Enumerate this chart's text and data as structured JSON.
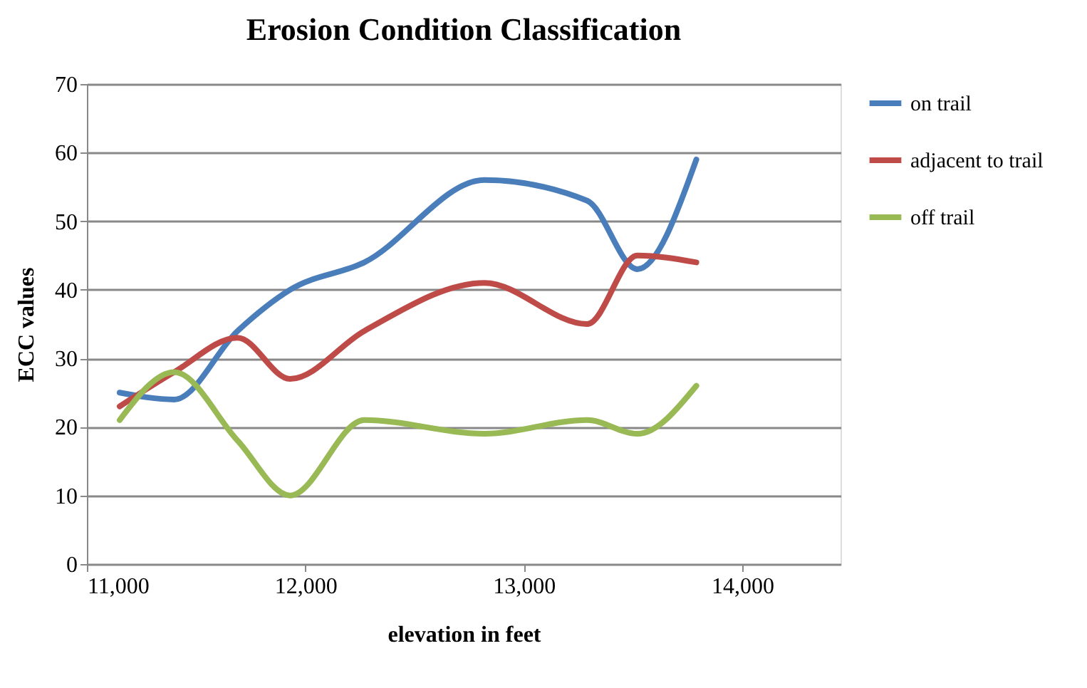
{
  "chart_data": {
    "type": "line",
    "title": "Erosion Condition Classification",
    "xlabel": "elevation in feet",
    "ylabel": "ECC values",
    "x": [
      11150,
      11400,
      11690,
      11930,
      12270,
      12820,
      13290,
      13520,
      13790
    ],
    "series": [
      {
        "name": "on trail",
        "color": "#4a7ebb",
        "values": [
          25,
          24,
          34,
          40,
          44,
          56,
          53,
          43,
          59
        ]
      },
      {
        "name": "adjacent to trail",
        "color": "#be4b48",
        "values": [
          23,
          28,
          33,
          27,
          34,
          41,
          35,
          45,
          44
        ]
      },
      {
        "name": "off trail",
        "color": "#98b954",
        "values": [
          21,
          28,
          18,
          10,
          21,
          19,
          21,
          19,
          26
        ]
      }
    ],
    "xlim": [
      11000,
      14450
    ],
    "xticks": [
      {
        "value": 11000,
        "label": "11,000"
      },
      {
        "value": 12000,
        "label": "12,000"
      },
      {
        "value": 13000,
        "label": "13,000"
      },
      {
        "value": 14000,
        "label": "14,000"
      }
    ],
    "ylim": [
      0,
      70
    ],
    "yticks": [
      0,
      10,
      20,
      30,
      40,
      50,
      60,
      70
    ],
    "grid": "y",
    "legend": "right",
    "marker": "none",
    "line_style": "solid"
  }
}
